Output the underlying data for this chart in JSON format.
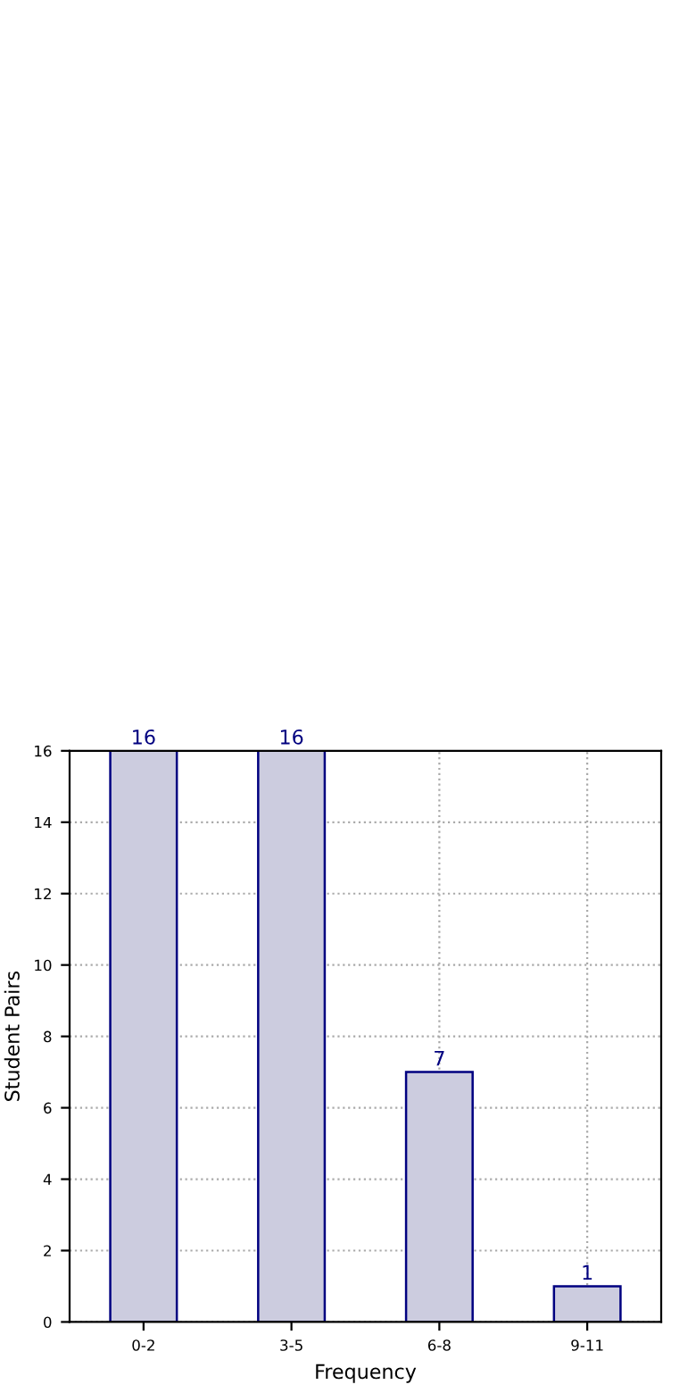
{
  "chart_data": {
    "type": "bar",
    "xlabel": "Frequency",
    "ylabel": "Student Pairs",
    "categories": [
      "0-2",
      "3-5",
      "6-8",
      "9-11"
    ],
    "values": [
      16,
      16,
      7,
      1
    ],
    "color": "#ccccdf",
    "ylim": [
      0,
      16
    ],
    "yticks": [
      0,
      2,
      4,
      6,
      8,
      10,
      12,
      14,
      16
    ],
    "grid": true,
    "data_labels": true
  }
}
